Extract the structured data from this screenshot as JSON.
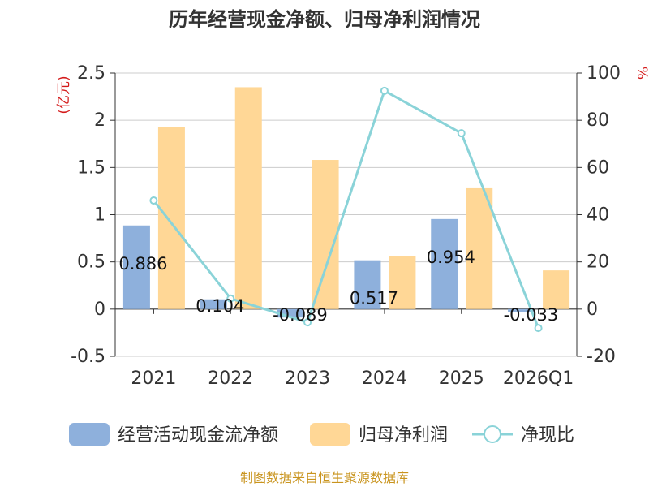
{
  "chart_data": {
    "type": "bar",
    "title": "历年经营现金净额、归母净利润情况",
    "categories": [
      "2021",
      "2022",
      "2023",
      "2024",
      "2025",
      "2026Q1"
    ],
    "series": [
      {
        "name": "经营活动现金流净额",
        "axis": "left",
        "kind": "bar",
        "color": "#8eb0dc",
        "values": [
          0.886,
          0.104,
          -0.089,
          0.517,
          0.954,
          -0.033
        ],
        "labels": [
          "0.886",
          "0.104",
          "-0.089",
          "0.517",
          "0.954",
          "-0.033"
        ]
      },
      {
        "name": "归母净利润",
        "axis": "left",
        "kind": "bar",
        "color": "#ffd796",
        "values": [
          1.93,
          2.35,
          1.58,
          0.56,
          1.28,
          0.41
        ]
      },
      {
        "name": "净现比",
        "axis": "right",
        "kind": "line",
        "color": "#8ad3d8",
        "values": [
          46,
          4.5,
          -5.6,
          92.5,
          74.5,
          -8
        ]
      }
    ],
    "y_left": {
      "min": -0.5,
      "max": 2.5,
      "ticks": [
        "-0.5",
        "0",
        "0.5",
        "1",
        "1.5",
        "2",
        "2.5"
      ],
      "unit": "(亿元)"
    },
    "y_right": {
      "min": -20,
      "max": 100,
      "ticks": [
        "-20",
        "0",
        "20",
        "40",
        "60",
        "80",
        "100"
      ],
      "unit": "%"
    },
    "grid": true,
    "legend_position": "bottom",
    "source": "制图数据来自恒生聚源数据库"
  }
}
